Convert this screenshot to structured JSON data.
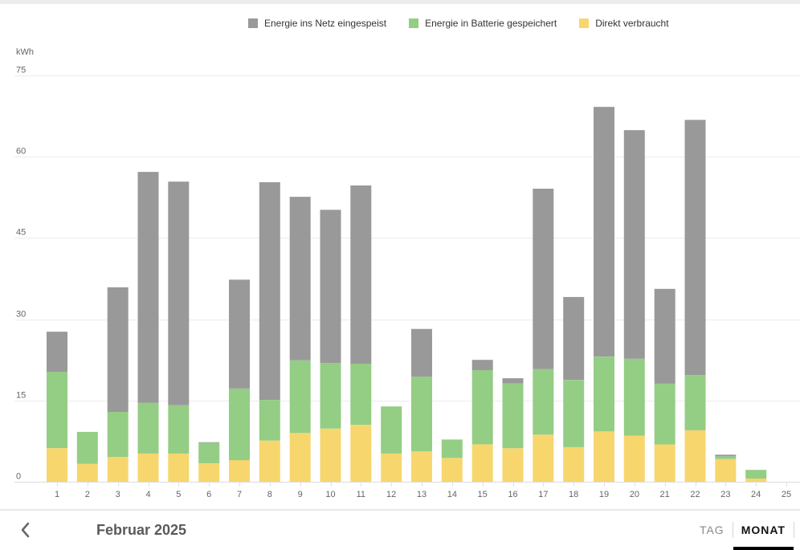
{
  "legend": [
    {
      "label": "Energie ins Netz eingespeist",
      "color": "#999999"
    },
    {
      "label": "Energie in Batterie gespeichert",
      "color": "#94cd84"
    },
    {
      "label": "Direkt verbraucht",
      "color": "#f7d66e"
    }
  ],
  "footer": {
    "back_icon": "chevron-left-icon",
    "period": "Februar 2025",
    "tabs": [
      {
        "label": "TAG",
        "active": false
      },
      {
        "label": "MONAT",
        "active": true
      }
    ]
  },
  "chart_data": {
    "type": "bar",
    "stacked": true,
    "title": "",
    "xlabel": "",
    "ylabel": "kWh",
    "ylim": [
      0,
      75
    ],
    "yticks": [
      0,
      15,
      30,
      45,
      60,
      75
    ],
    "grid": true,
    "legend_position": "top",
    "categories": [
      "1",
      "2",
      "3",
      "4",
      "5",
      "6",
      "7",
      "8",
      "9",
      "10",
      "11",
      "12",
      "13",
      "14",
      "15",
      "16",
      "17",
      "18",
      "19",
      "20",
      "21",
      "22",
      "23",
      "24",
      "25"
    ],
    "series": [
      {
        "name": "Direkt verbraucht",
        "color": "#f7d66e",
        "values": [
          6.2,
          3.3,
          4.6,
          5.2,
          5.2,
          3.4,
          4.0,
          7.6,
          9.0,
          9.8,
          10.5,
          5.2,
          5.6,
          4.4,
          6.9,
          6.2,
          8.7,
          6.4,
          9.3,
          8.5,
          6.9,
          9.5,
          4.2,
          0.6,
          0
        ]
      },
      {
        "name": "Energie in Batterie gespeichert",
        "color": "#94cd84",
        "values": [
          14.1,
          5.9,
          8.3,
          9.4,
          8.9,
          3.8,
          13.2,
          7.5,
          13.4,
          12.1,
          11.3,
          8.7,
          13.8,
          3.4,
          13.7,
          11.9,
          12.1,
          12.4,
          13.8,
          14.2,
          11.2,
          10.2,
          0.5,
          1.6,
          0
        ]
      },
      {
        "name": "Energie ins Netz eingespeist",
        "color": "#999999",
        "values": [
          7.4,
          0,
          23.0,
          42.6,
          41.3,
          0.1,
          20.1,
          40.2,
          30.2,
          28.3,
          32.9,
          0,
          8.8,
          0,
          1.9,
          1.0,
          33.3,
          15.3,
          46.1,
          42.2,
          17.5,
          47.1,
          0.3,
          0,
          0
        ]
      }
    ]
  }
}
